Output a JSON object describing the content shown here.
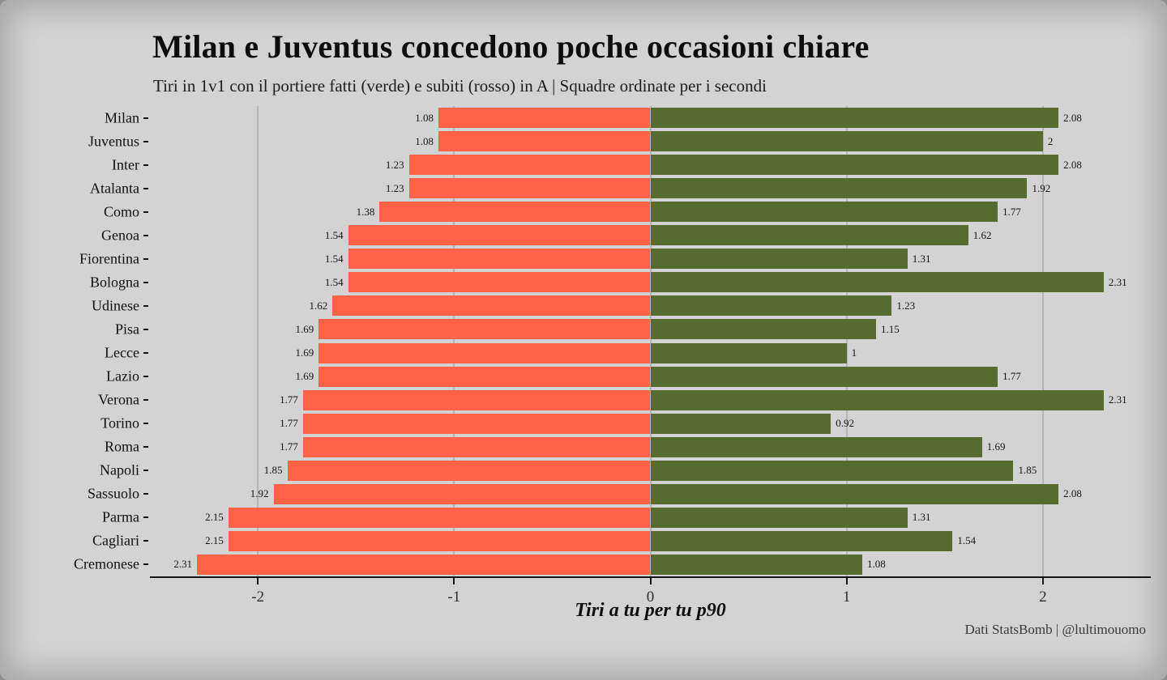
{
  "footer": {
    "credit": "Dati StatsBomb | @lultimouomo"
  },
  "chart_data": {
    "type": "bar",
    "orientation": "horizontal-diverging",
    "title": "Milan e Juventus concedono poche occasioni chiare",
    "subtitle": "Tiri in 1v1 con il portiere fatti (verde) e subiti (rosso) in A | Squadre ordinate per i secondi",
    "xlabel": "Tiri a tu per tu p90",
    "xlim": [
      -2.55,
      2.55
    ],
    "xticks": [
      -2,
      -1,
      0,
      1,
      2
    ],
    "xtick_labels": [
      "-2",
      "-1",
      "0",
      "1",
      "2"
    ],
    "grid": true,
    "legend": "none (encoded in subtitle: verde = fatti, rosso = subiti)",
    "colors": {
      "conceded": "#FF6347",
      "made": "#556B2F",
      "background": "#D3D3D3",
      "gridline": "#B5B5B5",
      "axis": "#151515"
    },
    "categories": [
      "Milan",
      "Juventus",
      "Inter",
      "Atalanta",
      "Como",
      "Genoa",
      "Fiorentina",
      "Bologna",
      "Udinese",
      "Pisa",
      "Lecce",
      "Lazio",
      "Verona",
      "Torino",
      "Roma",
      "Napoli",
      "Sassuolo",
      "Parma",
      "Cagliari",
      "Cremonese"
    ],
    "series": [
      {
        "name": "Tiri subiti (rosso)",
        "side": "left",
        "values": [
          -1.08,
          -1.08,
          -1.23,
          -1.23,
          -1.38,
          -1.54,
          -1.54,
          -1.54,
          -1.62,
          -1.69,
          -1.69,
          -1.69,
          -1.77,
          -1.77,
          -1.77,
          -1.85,
          -1.92,
          -2.15,
          -2.15,
          -2.31
        ],
        "labels": [
          "1.08",
          "1.08",
          "1.23",
          "1.23",
          "1.38",
          "1.54",
          "1.54",
          "1.54",
          "1.62",
          "1.69",
          "1.69",
          "1.69",
          "1.77",
          "1.77",
          "1.77",
          "1.85",
          "1.92",
          "2.15",
          "2.15",
          "2.31"
        ]
      },
      {
        "name": "Tiri fatti (verde)",
        "side": "right",
        "values": [
          2.08,
          2,
          2.08,
          1.92,
          1.77,
          1.62,
          1.31,
          2.31,
          1.23,
          1.15,
          1,
          1.77,
          2.31,
          0.92,
          1.69,
          1.85,
          2.08,
          1.31,
          1.54,
          1.08
        ],
        "labels": [
          "2.08",
          "2",
          "2.08",
          "1.92",
          "1.77",
          "1.62",
          "1.31",
          "2.31",
          "1.23",
          "1.15",
          "1",
          "1.77",
          "2.31",
          "0.92",
          "1.69",
          "1.85",
          "2.08",
          "1.31",
          "1.54",
          "1.08"
        ]
      }
    ]
  }
}
